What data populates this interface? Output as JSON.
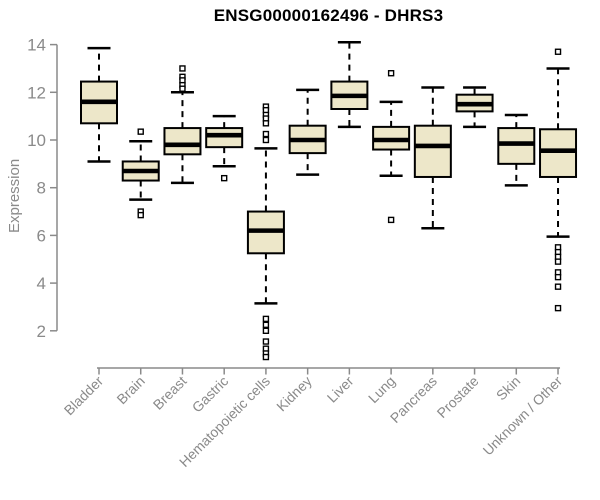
{
  "chart_data": {
    "type": "boxplot",
    "title": "ENSG00000162496 - DHRS3",
    "ylabel": "Expression",
    "xlabel": "",
    "ylim": [
      0.5,
      14.3
    ],
    "yticks": [
      2,
      4,
      6,
      8,
      10,
      12,
      14
    ],
    "categories": [
      "Bladder",
      "Brain",
      "Breast",
      "Gastric",
      "Hematopoietic cells",
      "Kidney",
      "Liver",
      "Lung",
      "Pancreas",
      "Prostate",
      "Skin",
      "Unknown / Other"
    ],
    "boxes": [
      {
        "category": "Bladder",
        "low": 9.1,
        "q1": 10.7,
        "median": 11.6,
        "q3": 12.45,
        "high": 13.85,
        "outliers": []
      },
      {
        "category": "Brain",
        "low": 7.5,
        "q1": 8.3,
        "median": 8.7,
        "q3": 9.1,
        "high": 9.95,
        "outliers": [
          10.35,
          7.0,
          6.85
        ]
      },
      {
        "category": "Breast",
        "low": 8.2,
        "q1": 9.4,
        "median": 9.8,
        "q3": 10.5,
        "high": 12.0,
        "outliers": [
          13.0,
          12.65,
          12.5,
          12.3,
          12.15
        ]
      },
      {
        "category": "Gastric",
        "low": 8.9,
        "q1": 9.7,
        "median": 10.2,
        "q3": 10.5,
        "high": 11.0,
        "outliers": [
          8.4
        ]
      },
      {
        "category": "Hematopoietic cells",
        "low": 3.15,
        "q1": 5.25,
        "median": 6.2,
        "q3": 7.0,
        "high": 9.65,
        "outliers": [
          11.4,
          11.25,
          11.05,
          10.9,
          10.7,
          10.25,
          10.0,
          2.5,
          2.25,
          2.0,
          1.55,
          1.25,
          1.05,
          0.9
        ]
      },
      {
        "category": "Kidney",
        "low": 8.55,
        "q1": 9.45,
        "median": 10.0,
        "q3": 10.6,
        "high": 12.1,
        "outliers": []
      },
      {
        "category": "Liver",
        "low": 10.55,
        "q1": 11.3,
        "median": 11.85,
        "q3": 12.45,
        "high": 14.1,
        "outliers": []
      },
      {
        "category": "Lung",
        "low": 8.5,
        "q1": 9.6,
        "median": 10.0,
        "q3": 10.55,
        "high": 11.6,
        "outliers": [
          12.8,
          6.65
        ]
      },
      {
        "category": "Pancreas",
        "low": 6.3,
        "q1": 8.45,
        "median": 9.75,
        "q3": 10.6,
        "high": 12.2,
        "outliers": []
      },
      {
        "category": "Prostate",
        "low": 10.55,
        "q1": 11.2,
        "median": 11.5,
        "q3": 11.9,
        "high": 12.2,
        "outliers": []
      },
      {
        "category": "Skin",
        "low": 8.1,
        "q1": 9.0,
        "median": 9.85,
        "q3": 10.5,
        "high": 11.05,
        "outliers": []
      },
      {
        "category": "Unknown / Other",
        "low": 5.95,
        "q1": 8.45,
        "median": 9.55,
        "q3": 10.45,
        "high": 13.0,
        "outliers": [
          13.7,
          5.5,
          5.3,
          5.1,
          4.9,
          4.45,
          4.25,
          3.85,
          2.95
        ]
      }
    ],
    "style": {
      "background": "#ffffff",
      "box_fill": "#EDE7C9",
      "box_stroke": "#000000",
      "median_color": "#000000",
      "whisker_color": "#000000",
      "outlier_marker": "open-square",
      "axis_color": "#8a8a8a"
    },
    "layout_hints": {
      "grid": false,
      "legend": "none",
      "x_label_rotation": -45,
      "whisker_style": "dashed"
    }
  }
}
